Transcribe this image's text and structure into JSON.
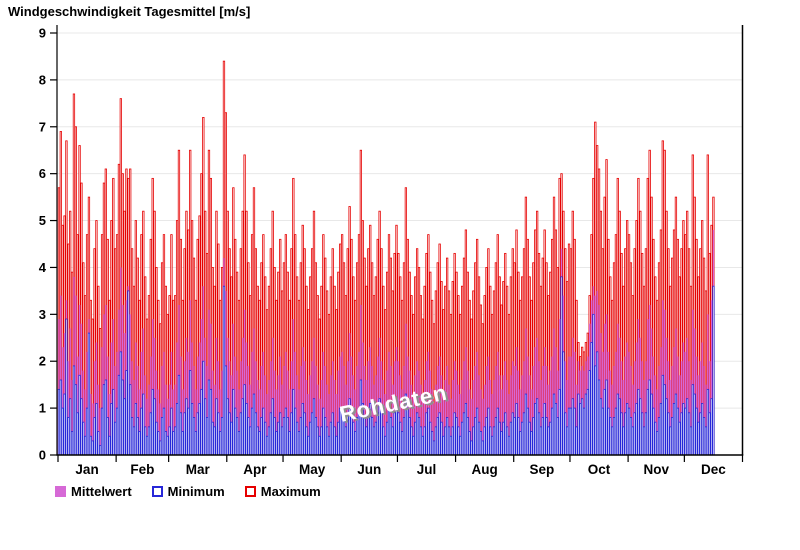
{
  "title": "Windgeschwindigkeit Tagesmittel [m/s]",
  "watermark": "Rohdaten",
  "legend": [
    {
      "label": "Mittelwert",
      "style": "filled",
      "color": "#d669d6"
    },
    {
      "label": "Minimum",
      "style": "outline",
      "color": "#2727d8"
    },
    {
      "label": "Maximum",
      "style": "outline",
      "color": "#e60000"
    }
  ],
  "colors": {
    "max_stroke": "#e60000",
    "mean_fill": "#d669d6",
    "min_stroke": "#2727d8",
    "bar_fill": "#ffffff",
    "grid": "#e8e8e8",
    "axis": "#000000"
  },
  "chart_data": {
    "type": "bar",
    "title": "Windgeschwindigkeit Tagesmittel [m/s]",
    "xlabel": "",
    "ylabel": "m/s",
    "ylim": [
      0,
      9
    ],
    "ytick_step": 1,
    "grid": true,
    "legend_position": "bottom",
    "categories": [
      "Jan",
      "Feb",
      "Mar",
      "Apr",
      "May",
      "Jun",
      "Jul",
      "Aug",
      "Sep",
      "Oct",
      "Nov",
      "Dec"
    ],
    "month_days": [
      31,
      28,
      31,
      30,
      31,
      30,
      31,
      31,
      30,
      31,
      30,
      31
    ],
    "x_span_days": 365,
    "data_days": 350,
    "series": [
      {
        "name": "Maximum",
        "role": "max",
        "values": [
          5.7,
          6.9,
          4.9,
          5.1,
          6.7,
          4.5,
          5.2,
          3.9,
          7.7,
          7.0,
          4.7,
          6.6,
          5.8,
          4.1,
          3.4,
          4.7,
          5.5,
          3.3,
          2.9,
          4.4,
          5.0,
          3.6,
          2.7,
          4.7,
          5.8,
          6.1,
          4.6,
          3.3,
          5.0,
          5.9,
          4.4,
          4.7,
          6.2,
          7.6,
          6.0,
          5.2,
          6.1,
          5.9,
          6.1,
          4.4,
          3.6,
          5.0,
          4.2,
          3.3,
          4.7,
          5.2,
          3.8,
          2.9,
          3.4,
          4.6,
          5.9,
          5.2,
          4.0,
          3.3,
          2.8,
          4.1,
          4.7,
          3.6,
          3.0,
          3.4,
          4.7,
          3.3,
          3.4,
          5.0,
          6.5,
          4.6,
          3.3,
          4.4,
          5.2,
          4.8,
          6.5,
          5.0,
          4.2,
          3.3,
          4.6,
          5.1,
          6.0,
          7.2,
          5.2,
          4.3,
          6.5,
          5.9,
          4.0,
          3.6,
          5.2,
          4.5,
          3.3,
          4.0,
          8.4,
          7.3,
          5.2,
          4.4,
          3.8,
          5.7,
          4.6,
          3.9,
          3.3,
          4.4,
          5.2,
          6.4,
          5.2,
          4.1,
          3.4,
          4.7,
          5.7,
          4.4,
          3.6,
          3.3,
          4.1,
          4.7,
          3.8,
          3.1,
          3.6,
          4.4,
          5.2,
          4.0,
          3.3,
          3.9,
          4.6,
          3.5,
          4.1,
          4.7,
          3.9,
          3.3,
          4.4,
          5.9,
          4.7,
          3.8,
          3.3,
          4.1,
          4.9,
          4.4,
          3.6,
          3.1,
          3.8,
          4.4,
          5.2,
          4.1,
          3.4,
          2.9,
          3.6,
          4.7,
          4.2,
          3.5,
          3.0,
          3.8,
          4.4,
          3.6,
          3.1,
          3.9,
          4.5,
          4.7,
          4.1,
          3.4,
          4.4,
          5.3,
          4.6,
          3.8,
          3.3,
          4.1,
          4.7,
          6.5,
          5.0,
          4.2,
          3.6,
          4.4,
          4.9,
          4.1,
          3.4,
          3.8,
          4.6,
          5.2,
          4.4,
          3.6,
          3.1,
          3.9,
          4.7,
          4.2,
          3.5,
          4.3,
          4.9,
          4.3,
          3.8,
          3.3,
          4.1,
          5.7,
          4.6,
          3.9,
          3.4,
          3.0,
          3.8,
          4.4,
          4.0,
          3.4,
          2.9,
          3.6,
          4.3,
          4.7,
          3.9,
          3.3,
          2.8,
          3.5,
          4.1,
          4.5,
          3.7,
          3.1,
          3.6,
          4.2,
          3.5,
          3.0,
          3.7,
          4.3,
          3.9,
          3.4,
          3.0,
          3.6,
          4.2,
          4.8,
          3.9,
          3.3,
          2.9,
          3.5,
          4.1,
          4.6,
          3.8,
          3.2,
          2.8,
          3.4,
          4.0,
          4.4,
          3.6,
          3.0,
          3.5,
          4.1,
          4.7,
          3.8,
          3.2,
          3.7,
          4.3,
          3.6,
          3.0,
          3.8,
          4.4,
          4.1,
          4.8,
          3.9,
          3.3,
          3.8,
          4.4,
          5.5,
          4.6,
          3.8,
          3.3,
          4.1,
          4.8,
          5.2,
          4.3,
          3.6,
          4.2,
          4.8,
          4.1,
          3.4,
          3.9,
          4.6,
          5.5,
          4.8,
          4.0,
          5.9,
          6.0,
          5.2,
          4.4,
          3.7,
          4.5,
          4.4,
          5.2,
          4.6,
          3.3,
          2.4,
          2.1,
          2.3,
          2.2,
          2.4,
          2.6,
          3.4,
          4.7,
          5.9,
          7.1,
          6.6,
          6.1,
          5.2,
          4.4,
          5.5,
          6.3,
          4.6,
          3.8,
          3.3,
          4.1,
          4.7,
          5.9,
          5.2,
          4.3,
          3.6,
          4.4,
          5.0,
          4.7,
          4.1,
          3.4,
          4.4,
          5.0,
          5.9,
          5.2,
          4.3,
          3.6,
          4.4,
          5.9,
          6.5,
          5.5,
          4.6,
          3.8,
          3.3,
          4.1,
          4.8,
          6.7,
          6.5,
          5.2,
          4.4,
          3.6,
          4.2,
          4.8,
          5.5,
          4.6,
          3.8,
          4.4,
          5.0,
          4.7,
          5.2,
          4.4,
          3.6,
          6.4,
          5.5,
          4.6,
          3.8,
          4.4,
          5.0,
          4.2,
          3.5,
          6.4,
          4.3,
          4.9,
          5.5
        ]
      },
      {
        "name": "Mittelwert",
        "role": "mean",
        "values": [
          2.9,
          3.4,
          2.3,
          2.6,
          3.3,
          2.0,
          2.7,
          1.6,
          3.8,
          3.4,
          2.1,
          3.2,
          2.8,
          1.8,
          1.4,
          2.2,
          2.9,
          1.3,
          1.1,
          2.0,
          2.4,
          1.5,
          1.0,
          2.3,
          3.0,
          3.2,
          2.1,
          1.3,
          2.4,
          2.9,
          1.9,
          2.2,
          3.1,
          4.0,
          3.2,
          2.6,
          3.3,
          3.6,
          3.0,
          2.0,
          1.6,
          2.4,
          1.9,
          1.4,
          2.2,
          2.7,
          1.7,
          1.2,
          1.5,
          2.1,
          2.9,
          2.5,
          1.8,
          1.4,
          1.1,
          1.9,
          2.2,
          1.5,
          1.2,
          1.5,
          2.2,
          1.4,
          1.5,
          2.4,
          3.2,
          2.1,
          1.4,
          2.0,
          2.5,
          2.2,
          3.3,
          2.4,
          1.9,
          1.4,
          2.1,
          2.4,
          2.9,
          3.6,
          2.5,
          1.9,
          3.1,
          2.8,
          1.8,
          1.5,
          2.5,
          2.0,
          1.4,
          1.8,
          4.2,
          3.5,
          2.5,
          2.0,
          1.7,
          2.8,
          2.1,
          1.8,
          1.4,
          2.0,
          2.5,
          3.1,
          2.4,
          1.9,
          1.5,
          2.2,
          2.7,
          2.0,
          1.6,
          1.4,
          1.9,
          2.2,
          1.7,
          1.3,
          1.6,
          2.0,
          2.5,
          1.8,
          1.4,
          1.7,
          2.1,
          1.5,
          1.9,
          2.2,
          1.8,
          1.4,
          2.0,
          2.9,
          2.2,
          1.7,
          1.4,
          1.9,
          2.3,
          2.0,
          1.6,
          1.3,
          1.7,
          2.0,
          2.5,
          1.9,
          1.5,
          1.2,
          1.6,
          2.2,
          1.9,
          1.5,
          1.3,
          1.7,
          2.0,
          1.6,
          1.3,
          1.8,
          2.1,
          2.2,
          1.9,
          1.5,
          2.0,
          2.6,
          2.1,
          1.7,
          1.4,
          1.9,
          2.2,
          3.2,
          2.4,
          1.9,
          1.6,
          2.0,
          2.3,
          1.9,
          1.5,
          1.7,
          2.1,
          2.5,
          2.0,
          1.6,
          1.3,
          1.8,
          2.2,
          1.9,
          1.5,
          2.0,
          2.3,
          2.0,
          1.7,
          1.4,
          1.9,
          2.8,
          2.1,
          1.8,
          1.5,
          1.3,
          1.7,
          2.0,
          1.8,
          1.5,
          1.2,
          1.6,
          2.0,
          2.2,
          1.8,
          1.4,
          1.1,
          1.5,
          1.9,
          2.1,
          1.7,
          1.3,
          1.6,
          1.9,
          1.5,
          1.2,
          1.6,
          2.0,
          1.8,
          1.5,
          1.3,
          1.6,
          2.0,
          2.3,
          1.8,
          1.4,
          1.2,
          1.6,
          1.9,
          2.2,
          1.7,
          1.4,
          1.2,
          1.5,
          1.9,
          2.1,
          1.6,
          1.3,
          1.6,
          1.9,
          2.2,
          1.7,
          1.4,
          1.7,
          2.0,
          1.6,
          1.3,
          1.7,
          2.0,
          1.9,
          2.3,
          1.8,
          1.4,
          1.7,
          2.0,
          2.7,
          2.1,
          1.7,
          1.4,
          1.9,
          2.3,
          2.5,
          2.0,
          1.6,
          1.9,
          2.3,
          1.9,
          1.5,
          1.8,
          2.1,
          2.7,
          2.3,
          1.8,
          2.9,
          4.4,
          3.4,
          2.0,
          1.6,
          2.1,
          2.1,
          2.5,
          2.2,
          1.5,
          2.0,
          1.8,
          1.9,
          1.8,
          2.0,
          2.1,
          2.8,
          3.3,
          3.6,
          3.4,
          3.5,
          3.2,
          2.6,
          2.2,
          2.8,
          3.0,
          2.2,
          1.8,
          1.5,
          1.9,
          2.2,
          2.8,
          2.5,
          2.0,
          1.6,
          2.1,
          2.4,
          2.2,
          1.9,
          1.5,
          2.0,
          2.4,
          2.9,
          2.5,
          2.0,
          1.6,
          2.0,
          2.9,
          3.2,
          2.7,
          2.1,
          1.7,
          1.4,
          1.9,
          2.3,
          3.3,
          3.1,
          2.5,
          2.0,
          1.6,
          1.9,
          2.3,
          2.7,
          2.1,
          1.7,
          2.0,
          2.4,
          2.2,
          2.5,
          2.0,
          1.6,
          3.1,
          2.7,
          2.1,
          1.7,
          2.0,
          2.4,
          1.9,
          1.5,
          3.0,
          2.0,
          3.3,
          4.8
        ]
      },
      {
        "name": "Minimum",
        "role": "min",
        "values": [
          1.4,
          1.6,
          1.0,
          1.3,
          2.9,
          0.8,
          1.2,
          0.5,
          1.9,
          1.5,
          0.9,
          1.7,
          1.2,
          0.7,
          0.4,
          1.0,
          2.6,
          0.4,
          0.3,
          0.8,
          1.1,
          0.5,
          0.2,
          1.0,
          1.5,
          1.6,
          0.8,
          0.4,
          1.1,
          1.4,
          0.7,
          1.0,
          1.7,
          2.2,
          1.6,
          1.2,
          1.8,
          3.5,
          1.5,
          0.8,
          0.6,
          1.1,
          0.8,
          0.5,
          1.0,
          1.3,
          0.6,
          0.4,
          0.6,
          0.9,
          1.4,
          1.2,
          0.7,
          0.5,
          0.3,
          0.8,
          1.0,
          0.5,
          0.4,
          0.6,
          1.0,
          0.5,
          0.6,
          1.1,
          1.7,
          0.9,
          0.5,
          0.9,
          1.2,
          1.0,
          1.8,
          1.1,
          0.8,
          0.5,
          0.9,
          1.1,
          1.4,
          2.0,
          1.2,
          0.8,
          1.6,
          1.4,
          0.7,
          0.6,
          1.2,
          0.9,
          0.5,
          0.8,
          3.6,
          1.9,
          1.2,
          0.9,
          0.7,
          1.4,
          1.0,
          0.8,
          0.5,
          0.9,
          1.2,
          1.5,
          1.1,
          0.8,
          0.6,
          1.0,
          1.3,
          0.9,
          0.6,
          0.5,
          0.8,
          1.0,
          0.7,
          0.4,
          0.6,
          0.9,
          1.2,
          0.8,
          0.5,
          0.7,
          0.9,
          0.6,
          0.8,
          1.0,
          0.8,
          0.5,
          0.9,
          1.4,
          1.0,
          0.7,
          0.5,
          0.8,
          1.1,
          0.9,
          0.6,
          0.4,
          0.7,
          0.9,
          1.2,
          0.8,
          0.6,
          0.4,
          0.6,
          1.0,
          0.8,
          0.6,
          0.4,
          0.7,
          0.9,
          0.6,
          0.4,
          0.7,
          1.0,
          1.0,
          0.8,
          0.6,
          0.9,
          1.2,
          1.0,
          0.7,
          0.5,
          0.8,
          1.0,
          1.6,
          1.1,
          0.8,
          0.6,
          0.9,
          1.1,
          0.8,
          0.6,
          0.7,
          0.9,
          1.2,
          0.9,
          0.6,
          0.4,
          0.7,
          1.0,
          0.8,
          0.6,
          0.9,
          1.1,
          0.9,
          0.7,
          0.5,
          0.8,
          1.3,
          1.0,
          0.8,
          0.6,
          0.4,
          0.7,
          0.9,
          0.8,
          0.6,
          0.4,
          0.6,
          0.9,
          1.0,
          0.7,
          0.5,
          0.3,
          0.6,
          0.8,
          0.9,
          0.7,
          0.4,
          0.6,
          0.8,
          0.6,
          0.4,
          0.6,
          0.9,
          0.8,
          0.6,
          0.4,
          0.7,
          0.9,
          1.1,
          0.8,
          0.5,
          0.3,
          0.6,
          0.8,
          1.0,
          0.7,
          0.5,
          0.3,
          0.6,
          0.8,
          1.0,
          0.6,
          0.4,
          0.6,
          0.8,
          1.0,
          0.7,
          0.5,
          0.7,
          0.9,
          0.6,
          0.4,
          0.7,
          0.9,
          0.8,
          1.1,
          0.8,
          0.5,
          0.7,
          0.9,
          1.3,
          1.0,
          0.7,
          0.5,
          0.8,
          1.1,
          1.2,
          0.9,
          0.6,
          0.8,
          1.1,
          0.8,
          0.6,
          0.7,
          1.0,
          1.3,
          1.1,
          0.8,
          1.4,
          3.8,
          2.2,
          0.9,
          0.6,
          1.0,
          1.0,
          1.2,
          1.0,
          0.6,
          1.3,
          1.1,
          1.2,
          1.0,
          1.3,
          1.4,
          1.8,
          2.4,
          3.0,
          1.9,
          2.2,
          1.6,
          1.2,
          1.0,
          1.4,
          1.6,
          1.0,
          0.8,
          0.6,
          0.8,
          1.0,
          1.3,
          1.2,
          0.9,
          0.6,
          0.9,
          1.1,
          1.0,
          0.8,
          0.6,
          0.9,
          1.1,
          1.4,
          1.2,
          0.9,
          0.6,
          0.9,
          1.4,
          1.6,
          1.3,
          1.0,
          0.7,
          0.5,
          0.8,
          1.1,
          1.7,
          1.5,
          1.2,
          0.9,
          0.6,
          0.8,
          1.1,
          1.3,
          1.0,
          0.7,
          0.9,
          1.1,
          1.0,
          1.2,
          0.9,
          0.6,
          1.5,
          1.3,
          1.0,
          0.7,
          0.9,
          1.1,
          0.8,
          0.6,
          1.4,
          0.9,
          1.2,
          3.6
        ]
      }
    ]
  }
}
